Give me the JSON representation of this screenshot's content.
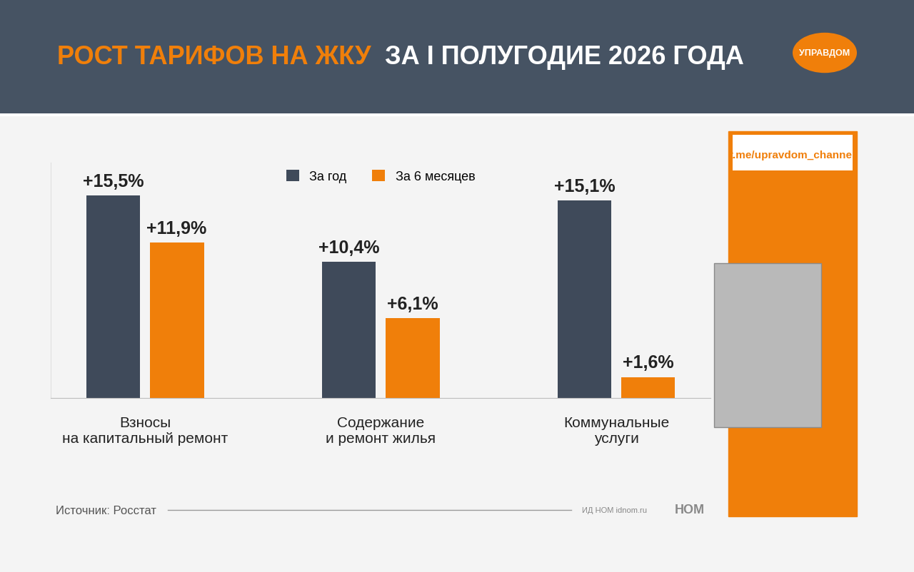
{
  "chart_data": {
    "type": "bar",
    "title": "РОСТ ТАРИФОВ НА ЖКУ ЗА I ПОЛУГОДИЕ 2026 ГОДА",
    "categories": [
      "Взносы\nна капитальный ремонт",
      "Содержание\nи ремонт жилья",
      "Коммунальные\nуслуги"
    ],
    "series": [
      {
        "name": "За год",
        "color": "#3f4a5a",
        "values": [
          15.5,
          10.4,
          15.1
        ],
        "value_labels": [
          "+15,5%",
          "+10,4%",
          "+15,1%"
        ]
      },
      {
        "name": "За 6 месяцев",
        "color": "#f07f0a",
        "values": [
          11.9,
          6.1,
          1.6
        ],
        "value_labels": [
          "+11,9%",
          "+6,1%",
          "+1,6%"
        ]
      }
    ],
    "ylim": [
      0,
      18
    ],
    "tick_labels": "x",
    "grid": false,
    "legend": "upper center",
    "data_labels": true,
    "annotations": [
      "Источник: Росстат",
      "ИД НОМ idnom.ru",
      "НОМ",
      "t.me/upravdom_channel",
      "УПРАВДОМ"
    ]
  }
}
